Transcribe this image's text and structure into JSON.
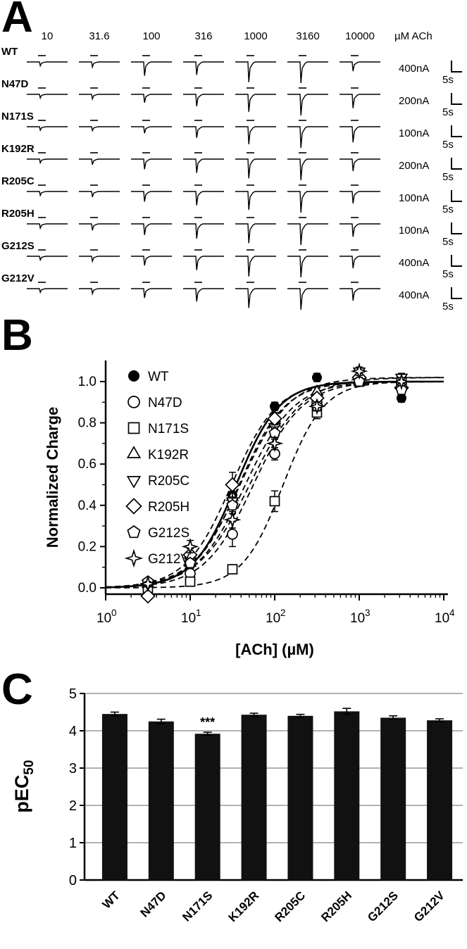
{
  "figure": {
    "background": "#ffffff",
    "ink": "#000000",
    "grid_color": "#999999"
  },
  "panelA": {
    "label": "A",
    "concentration_labels": [
      "10",
      "31.6",
      "100",
      "316",
      "1000",
      "3160",
      "10000"
    ],
    "unit_label": "µM ACh",
    "rows": [
      {
        "name": "WT",
        "scale_current": "400nA",
        "scale_time": "5s",
        "amplitudes": [
          0.06,
          0.12,
          0.6,
          0.55,
          0.95,
          1.0,
          0.35
        ]
      },
      {
        "name": "N47D",
        "scale_current": "200nA",
        "scale_time": "5s",
        "amplitudes": [
          0.05,
          0.1,
          0.3,
          0.5,
          0.8,
          1.0,
          0.6
        ]
      },
      {
        "name": "N171S",
        "scale_current": "100nA",
        "scale_time": "5s",
        "amplitudes": [
          0.04,
          0.06,
          0.2,
          0.45,
          0.8,
          1.0,
          0.7
        ]
      },
      {
        "name": "K192R",
        "scale_current": "200nA",
        "scale_time": "5s",
        "amplitudes": [
          0.05,
          0.15,
          0.4,
          0.6,
          0.9,
          1.0,
          0.5
        ]
      },
      {
        "name": "R205C",
        "scale_current": "100nA",
        "scale_time": "5s",
        "amplitudes": [
          0.06,
          0.15,
          0.4,
          0.6,
          0.85,
          1.0,
          0.5
        ]
      },
      {
        "name": "R205H",
        "scale_current": "100nA",
        "scale_time": "5s",
        "amplitudes": [
          0.08,
          0.2,
          0.45,
          0.65,
          0.9,
          1.0,
          0.55
        ]
      },
      {
        "name": "G212S",
        "scale_current": "400nA",
        "scale_time": "5s",
        "amplitudes": [
          0.05,
          0.12,
          0.35,
          0.6,
          0.95,
          1.0,
          0.5
        ]
      },
      {
        "name": "G212V",
        "scale_current": "400nA",
        "scale_time": "5s",
        "amplitudes": [
          0.05,
          0.12,
          0.35,
          0.55,
          0.9,
          1.0,
          0.5
        ]
      }
    ]
  },
  "chart_data": [
    {
      "panel": "B",
      "type": "line",
      "title": "",
      "xlabel": "[ACh] (µM)",
      "ylabel": "Normalized Charge",
      "x_scale": "log",
      "xlim": [
        1,
        10000
      ],
      "ylim": [
        -0.05,
        1.1
      ],
      "yticks": [
        0.0,
        0.2,
        0.4,
        0.6,
        0.8,
        1.0
      ],
      "legend_position": "top-left",
      "x": [
        3.16,
        10,
        31.6,
        100,
        316,
        1000,
        3160
      ],
      "series": [
        {
          "name": "WT",
          "symbol": "filled-circle",
          "line": "solid",
          "ec50_uM": 35,
          "hill": 1.7,
          "ymax": 1.0,
          "values": [
            0.02,
            0.11,
            0.45,
            0.88,
            1.02,
            1.0,
            0.92
          ],
          "errors": [
            0.01,
            0.02,
            0.05,
            0.02,
            0.02,
            0.01,
            0.02
          ]
        },
        {
          "name": "N47D",
          "symbol": "open-circle",
          "line": "dashed",
          "ec50_uM": 56,
          "hill": 1.5,
          "ymax": 1.0,
          "values": [
            0.01,
            0.07,
            0.26,
            0.65,
            0.9,
            1.0,
            0.99
          ],
          "errors": [
            0.01,
            0.02,
            0.06,
            0.03,
            0.02,
            0.02,
            0.02
          ]
        },
        {
          "name": "N171S",
          "symbol": "open-square",
          "line": "dashed",
          "ec50_uM": 126,
          "hill": 1.8,
          "ymax": 1.0,
          "values": [
            0.0,
            0.03,
            0.09,
            0.42,
            0.85,
            1.0,
            1.0
          ],
          "errors": [
            0.01,
            0.01,
            0.02,
            0.05,
            0.03,
            0.02,
            0.02
          ]
        },
        {
          "name": "K192R",
          "symbol": "open-triangle-up",
          "line": "dashed",
          "ec50_uM": 38,
          "hill": 1.6,
          "ymax": 1.0,
          "values": [
            0.02,
            0.12,
            0.44,
            0.8,
            0.95,
            1.0,
            0.98
          ],
          "errors": [
            0.01,
            0.02,
            0.05,
            0.03,
            0.02,
            0.02,
            0.02
          ]
        },
        {
          "name": "R205C",
          "symbol": "open-triangle-down",
          "line": "dashed",
          "ec50_uM": 40,
          "hill": 1.5,
          "ymax": 1.02,
          "values": [
            0.02,
            0.13,
            0.42,
            0.78,
            0.92,
            1.05,
            1.02
          ],
          "errors": [
            0.01,
            0.02,
            0.04,
            0.03,
            0.02,
            0.02,
            0.02
          ]
        },
        {
          "name": "R205H",
          "symbol": "open-diamond",
          "line": "dashed",
          "ec50_uM": 31,
          "hill": 1.6,
          "ymax": 1.0,
          "values": [
            -0.04,
            0.16,
            0.5,
            0.82,
            0.92,
            1.02,
            0.97
          ],
          "errors": [
            0.01,
            0.03,
            0.06,
            0.03,
            0.02,
            0.02,
            0.02
          ]
        },
        {
          "name": "G212S",
          "symbol": "open-pentagon",
          "line": "dashed",
          "ec50_uM": 45,
          "hill": 1.5,
          "ymax": 1.0,
          "values": [
            0.03,
            0.12,
            0.4,
            0.75,
            0.88,
            1.0,
            0.96
          ],
          "errors": [
            0.01,
            0.02,
            0.04,
            0.03,
            0.02,
            0.02,
            0.02
          ]
        },
        {
          "name": "G212V",
          "symbol": "open-star4",
          "line": "dashed",
          "ec50_uM": 52,
          "hill": 1.4,
          "ymax": 1.02,
          "values": [
            0.02,
            0.2,
            0.33,
            0.7,
            0.88,
            1.05,
            1.0
          ],
          "errors": [
            0.01,
            0.03,
            0.04,
            0.03,
            0.02,
            0.02,
            0.02
          ]
        }
      ]
    },
    {
      "panel": "C",
      "type": "bar",
      "categories": [
        "WT",
        "N47D",
        "N171S",
        "K192R",
        "R205C",
        "R205H",
        "G212S",
        "G212V"
      ],
      "values": [
        4.45,
        4.25,
        3.92,
        4.43,
        4.4,
        4.52,
        4.35,
        4.28
      ],
      "errors": [
        0.05,
        0.06,
        0.04,
        0.04,
        0.04,
        0.08,
        0.05,
        0.04
      ],
      "ylabel": "pEC50",
      "ylabel_base": "pEC",
      "ylabel_sub": "50",
      "ylim": [
        0,
        5
      ],
      "yticks": [
        0,
        1,
        2,
        3,
        4,
        5
      ],
      "annotations": [
        {
          "category": "N171S",
          "text": "***"
        }
      ],
      "bar_color": "#111111",
      "grid": true
    }
  ]
}
